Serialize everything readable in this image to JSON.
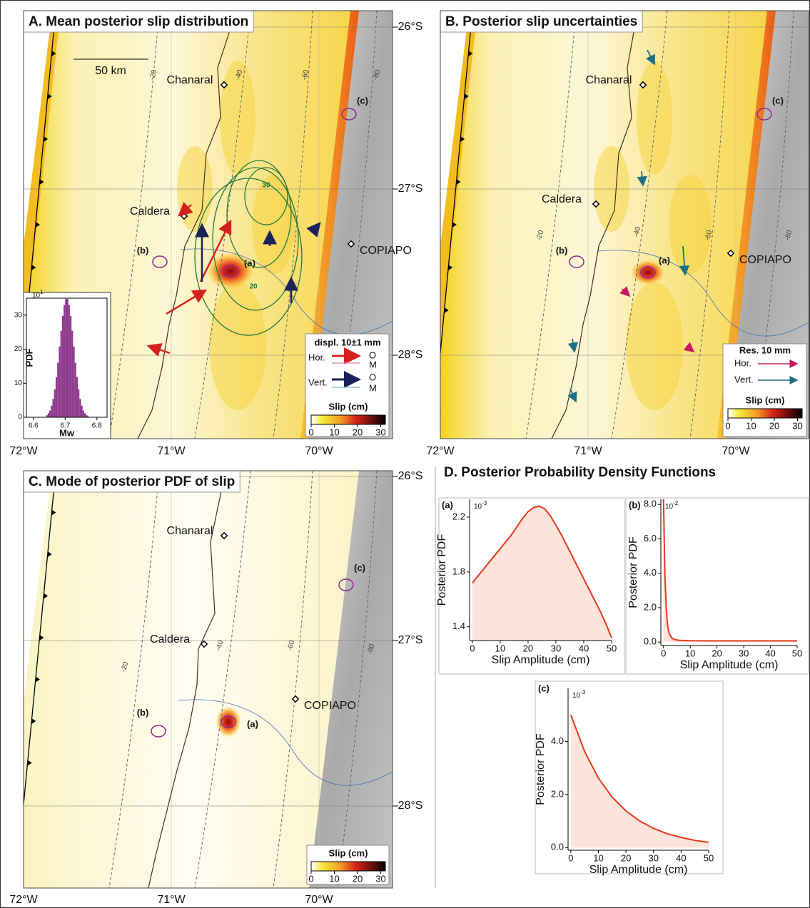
{
  "maps": [
    {
      "title": "A. Mean posterior slip distribution",
      "lat_labels": [
        "26°S",
        "27°S",
        "28°S"
      ],
      "lon_labels": [
        "72°W",
        "71°W",
        "70°W"
      ],
      "places": [
        "Chanaral",
        "Caldera",
        "COPIAPO"
      ],
      "sites": [
        "(a)",
        "(b)",
        "(c)"
      ],
      "depth_labels": [
        "-20",
        "-40",
        "-60",
        "-80"
      ],
      "scale_bar": "50 km",
      "contour_labels": [
        "30",
        "20"
      ],
      "legend": {
        "title": "displ. 10±1 mm",
        "rows": [
          "Hor.",
          "Vert."
        ],
        "marks": [
          "O",
          "M",
          "O",
          "M"
        ]
      },
      "colorbar": {
        "label": "Slip (cm)",
        "lim": [
          0,
          32
        ],
        "ticks": [
          0,
          10,
          20,
          30
        ]
      }
    },
    {
      "title": "B. Posterior slip uncertainties",
      "lon_labels": [
        "72°W",
        "71°W",
        "70°W"
      ],
      "places": [
        "Chanaral",
        "Caldera",
        "COPIAPO"
      ],
      "sites": [
        "(a)",
        "(b)",
        "(c)"
      ],
      "depth_labels": [
        "-20",
        "-40",
        "-60",
        "-80"
      ],
      "legend": {
        "title": "Res. 10 mm",
        "rows": [
          "Hor.",
          "Vert."
        ]
      },
      "colorbar": {
        "label": "Slip (cm)",
        "lim": [
          0,
          32
        ],
        "ticks": [
          0,
          10,
          20,
          30
        ]
      }
    },
    {
      "title": "C. Mode of posterior PDF of slip",
      "lat_labels": [
        "26°S",
        "27°S",
        "28°S"
      ],
      "lon_labels": [
        "72°W",
        "71°W",
        "70°W"
      ],
      "places": [
        "Chanaral",
        "Caldera",
        "COPIAPO"
      ],
      "sites": [
        "(a)",
        "(b)",
        "(c)"
      ],
      "depth_labels": [
        "-20",
        "-40",
        "-60",
        "-80"
      ],
      "colorbar": {
        "label": "Slip (cm)",
        "lim": [
          0,
          32
        ],
        "ticks": [
          0,
          10,
          20,
          30
        ]
      }
    }
  ],
  "section_title": "D. Posterior Probability Density Functions",
  "chart_data": [
    {
      "type": "histogram",
      "x_label": "Mw",
      "y_label": "PDF",
      "y_multiplier": "10",
      "y_multiplier_exponent": "1",
      "color": "#8e3b8e",
      "bins": [
        6.64,
        6.645,
        6.65,
        6.655,
        6.66,
        6.665,
        6.67,
        6.675,
        6.68,
        6.685,
        6.69,
        6.695,
        6.7,
        6.705,
        6.71,
        6.715,
        6.72,
        6.725,
        6.73,
        6.735,
        6.74,
        6.745,
        6.75,
        6.755,
        6.76,
        6.765,
        6.77,
        6.775,
        6.78
      ],
      "values": [
        0.6,
        1.2,
        2.0,
        3.4,
        5.4,
        8.2,
        11.8,
        16.0,
        20.8,
        25.4,
        29.8,
        33.0,
        34.8,
        34.8,
        33.0,
        29.8,
        25.4,
        20.8,
        16.0,
        11.8,
        8.2,
        5.4,
        3.4,
        2.0,
        1.2,
        0.6,
        0.3,
        0.1
      ],
      "xlim": [
        6.578,
        6.832
      ],
      "ylim": [
        0,
        35
      ],
      "xticks": [
        6.6,
        6.7,
        6.8
      ],
      "yticks": [
        0,
        10,
        20,
        30
      ]
    },
    {
      "type": "area",
      "panel_label": "(a)",
      "x_label": "Slip Amplitude (cm)",
      "y_label": "Posterior PDF",
      "y_multiplier": "10",
      "y_multiplier_exponent": "-3",
      "color": "#e5391c",
      "fill": "#fde4da",
      "x": [
        0,
        2,
        4,
        6,
        8,
        10,
        12,
        14,
        16,
        18,
        20,
        22,
        24,
        26,
        28,
        30,
        32,
        34,
        36,
        38,
        40,
        42,
        44,
        46,
        48,
        50
      ],
      "values": [
        1.72,
        1.77,
        1.82,
        1.87,
        1.92,
        1.97,
        2.02,
        2.07,
        2.13,
        2.19,
        2.24,
        2.27,
        2.28,
        2.26,
        2.21,
        2.14,
        2.07,
        1.99,
        1.91,
        1.83,
        1.75,
        1.67,
        1.59,
        1.51,
        1.42,
        1.32
      ],
      "xlim": [
        -1,
        50
      ],
      "ylim": [
        1.3,
        2.33
      ],
      "xticks": [
        0,
        10,
        20,
        30,
        40,
        50
      ],
      "yticks": [
        1.4,
        1.8,
        2.2
      ]
    },
    {
      "type": "area",
      "panel_label": "(b)",
      "x_label": "Slip Amplitude (cm)",
      "y_label": "Posterior PDF",
      "y_multiplier": "10",
      "y_multiplier_exponent": "-2",
      "color": "#e5391c",
      "fill": "#fde4da",
      "x": [
        0,
        0.5,
        1,
        1.5,
        2,
        3,
        4,
        5,
        6,
        8,
        10,
        20,
        30,
        40,
        50
      ],
      "values": [
        8.3,
        4.0,
        2.0,
        1.0,
        0.55,
        0.25,
        0.15,
        0.12,
        0.1,
        0.09,
        0.08,
        0.07,
        0.07,
        0.07,
        0.07
      ],
      "xlim": [
        -1,
        50
      ],
      "ylim": [
        -0.2,
        8.3
      ],
      "xticks": [
        0,
        10,
        20,
        30,
        40,
        50
      ],
      "yticks": [
        {
          "value": 0,
          "label": "0.0"
        },
        {
          "value": 2,
          "label": "2.0"
        },
        {
          "value": 4,
          "label": "4.0"
        },
        {
          "value": 6,
          "label": "6.0"
        },
        {
          "value": 8,
          "label": "8.0"
        }
      ]
    },
    {
      "type": "area",
      "panel_label": "(c)",
      "x_label": "Slip Amplitude (cm)",
      "y_label": "Posterior PDF",
      "y_multiplier": "10",
      "y_multiplier_exponent": "-3",
      "color": "#e5391c",
      "fill": "#fde4da",
      "x": [
        0,
        5,
        10,
        15,
        20,
        25,
        30,
        35,
        40,
        45,
        50
      ],
      "values": [
        5.0,
        3.62,
        2.62,
        1.9,
        1.38,
        1.0,
        0.72,
        0.52,
        0.38,
        0.27,
        0.2
      ],
      "xlim": [
        -1,
        50
      ],
      "ylim": [
        -0.1,
        6.0
      ],
      "xticks": [
        0,
        10,
        20,
        30,
        40,
        50
      ],
      "yticks": [
        {
          "value": 0,
          "label": "0.0"
        },
        {
          "value": 2,
          "label": "2.0"
        },
        {
          "value": 4,
          "label": "4.0"
        }
      ]
    }
  ]
}
